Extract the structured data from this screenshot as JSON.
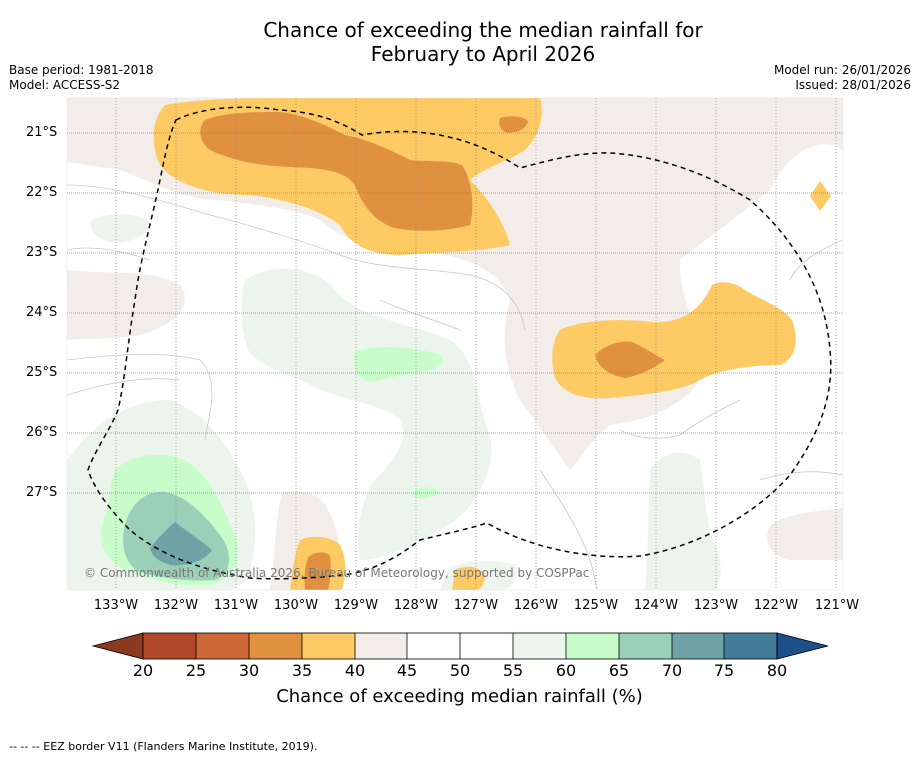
{
  "title_line1": "Chance of exceeding the median rainfall for",
  "title_line2": "February to April 2026",
  "base_period": "Base period: 1981-2018",
  "model": "Model: ACCESS-S2",
  "model_run": "Model run: 26/01/2026",
  "issued": "Issued: 28/01/2026",
  "copyright": "© Commonwealth of Australia 2026, Bureau of Meteorology, supported by COSPPac",
  "latitudes": [
    "21°S",
    "22°S",
    "23°S",
    "24°S",
    "25°S",
    "26°S",
    "27°S"
  ],
  "longitudes": [
    "133°W",
    "132°W",
    "131°W",
    "130°W",
    "129°W",
    "128°W",
    "127°W",
    "126°W",
    "125°W",
    "124°W",
    "123°W",
    "122°W",
    "121°W"
  ],
  "colorbar": {
    "ticks": [
      "20",
      "25",
      "30",
      "35",
      "40",
      "45",
      "50",
      "55",
      "60",
      "65",
      "70",
      "75",
      "80"
    ],
    "colors": [
      "#8b3a1f",
      "#b1482a",
      "#cd6735",
      "#e0913f",
      "#fdca64",
      "#f2ede8",
      "#ffffff",
      "#ffffff",
      "#ebf5ec",
      "#c8fccb",
      "#9bcfb7",
      "#6ea3a7",
      "#437c98",
      "#1e4f88"
    ],
    "title": "Chance of exceeding median rainfall (%)"
  },
  "footer": "--  --  -- EEZ border V11 (Flanders Marine Institute, 2019)."
}
